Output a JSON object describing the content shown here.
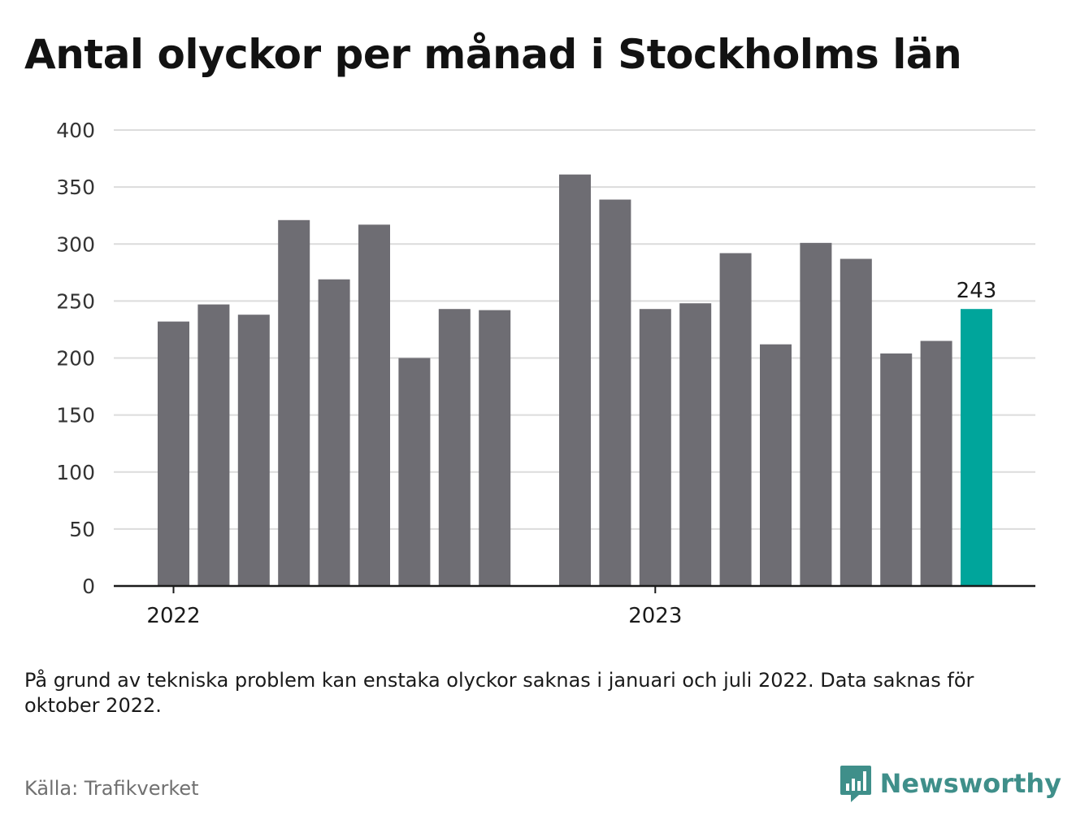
{
  "title": "Antal olyckor per månad i Stockholms län",
  "note": "På grund av tekniska problem kan enstaka olyckor saknas i januari och juli 2022. Data saknas för oktober 2022.",
  "source": "Källa: Trafikverket",
  "brand": {
    "name": "Newsworthy",
    "icon": "newsworthy-logo-icon"
  },
  "colors": {
    "bar": "#6e6d73",
    "highlight": "#00a59b",
    "grid": "#dcdcdc",
    "axis": "#1a1a1a",
    "brand": "#3f8f8a"
  },
  "chart_data": {
    "type": "bar",
    "title": "Antal olyckor per månad i Stockholms län",
    "xlabel": "",
    "ylabel": "",
    "ylim": [
      0,
      400
    ],
    "yticks": [
      0,
      50,
      100,
      150,
      200,
      250,
      300,
      350,
      400
    ],
    "x_tick_labels": [
      "2022",
      "2023"
    ],
    "grid": true,
    "highlight_last": true,
    "series": [
      {
        "values": [
          [
            2022,
            1,
            232
          ],
          [
            2022,
            2,
            247
          ],
          [
            2022,
            3,
            238
          ],
          [
            2022,
            4,
            321
          ],
          [
            2022,
            5,
            269
          ],
          [
            2022,
            6,
            317
          ],
          [
            2022,
            7,
            200
          ],
          [
            2022,
            8,
            243
          ],
          [
            2022,
            9,
            242
          ],
          [
            2022,
            10,
            null
          ],
          [
            2022,
            11,
            361
          ],
          [
            2022,
            12,
            339
          ],
          [
            2023,
            1,
            243
          ],
          [
            2023,
            2,
            248
          ],
          [
            2023,
            3,
            292
          ],
          [
            2023,
            4,
            212
          ],
          [
            2023,
            5,
            301
          ],
          [
            2023,
            6,
            287
          ],
          [
            2023,
            7,
            204
          ],
          [
            2023,
            8,
            215
          ],
          [
            2023,
            9,
            243
          ]
        ]
      }
    ],
    "data_labels": [
      {
        "year": 2023,
        "month": 9,
        "text": "243"
      }
    ]
  }
}
